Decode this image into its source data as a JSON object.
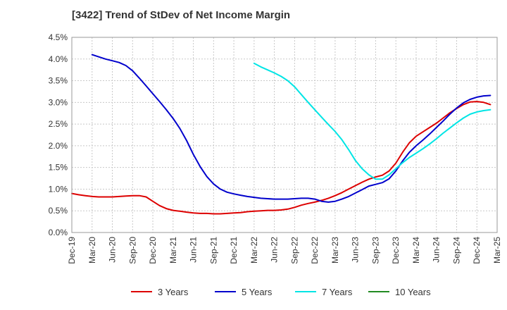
{
  "chart_data": {
    "type": "line",
    "title": "[3422]  Trend of StDev of Net Income Margin",
    "xlabel": "",
    "ylabel": "",
    "x_ticks": [
      "Dec-19",
      "Mar-20",
      "Jun-20",
      "Sep-20",
      "Dec-20",
      "Mar-21",
      "Jun-21",
      "Sep-21",
      "Dec-21",
      "Mar-22",
      "Jun-22",
      "Sep-22",
      "Dec-22",
      "Mar-23",
      "Jun-23",
      "Sep-23",
      "Dec-23",
      "Mar-24",
      "Jun-24",
      "Sep-24",
      "Dec-24",
      "Mar-25"
    ],
    "y_ticks": [
      "0.0%",
      "0.5%",
      "1.0%",
      "1.5%",
      "2.0%",
      "2.5%",
      "3.0%",
      "3.5%",
      "4.0%",
      "4.5%"
    ],
    "ylim": [
      0,
      4.5
    ],
    "y_unit": "%",
    "grid": true,
    "legend_position": "bottom",
    "series": [
      {
        "name": "3 Years",
        "color": "#dd0000",
        "points": [
          [
            "Dec-19",
            0.9
          ],
          [
            "Jan-20",
            0.87
          ],
          [
            "Feb-20",
            0.85
          ],
          [
            "Mar-20",
            0.83
          ],
          [
            "Apr-20",
            0.82
          ],
          [
            "May-20",
            0.82
          ],
          [
            "Jun-20",
            0.82
          ],
          [
            "Jul-20",
            0.83
          ],
          [
            "Aug-20",
            0.84
          ],
          [
            "Sep-20",
            0.85
          ],
          [
            "Oct-20",
            0.85
          ],
          [
            "Nov-20",
            0.82
          ],
          [
            "Dec-20",
            0.72
          ],
          [
            "Jan-21",
            0.62
          ],
          [
            "Feb-21",
            0.55
          ],
          [
            "Mar-21",
            0.51
          ],
          [
            "Apr-21",
            0.49
          ],
          [
            "May-21",
            0.47
          ],
          [
            "Jun-21",
            0.45
          ],
          [
            "Jul-21",
            0.44
          ],
          [
            "Aug-21",
            0.44
          ],
          [
            "Sep-21",
            0.43
          ],
          [
            "Oct-21",
            0.43
          ],
          [
            "Nov-21",
            0.44
          ],
          [
            "Dec-21",
            0.45
          ],
          [
            "Jan-22",
            0.46
          ],
          [
            "Feb-22",
            0.48
          ],
          [
            "Mar-22",
            0.49
          ],
          [
            "Apr-22",
            0.5
          ],
          [
            "May-22",
            0.51
          ],
          [
            "Jun-22",
            0.51
          ],
          [
            "Jul-22",
            0.52
          ],
          [
            "Aug-22",
            0.54
          ],
          [
            "Sep-22",
            0.58
          ],
          [
            "Oct-22",
            0.63
          ],
          [
            "Nov-22",
            0.67
          ],
          [
            "Dec-22",
            0.7
          ],
          [
            "Jan-23",
            0.74
          ],
          [
            "Feb-23",
            0.79
          ],
          [
            "Mar-23",
            0.85
          ],
          [
            "Apr-23",
            0.92
          ],
          [
            "May-23",
            1.0
          ],
          [
            "Jun-23",
            1.08
          ],
          [
            "Jul-23",
            1.16
          ],
          [
            "Aug-23",
            1.23
          ],
          [
            "Sep-23",
            1.28
          ],
          [
            "Oct-23",
            1.32
          ],
          [
            "Nov-23",
            1.42
          ],
          [
            "Dec-23",
            1.6
          ],
          [
            "Jan-24",
            1.85
          ],
          [
            "Feb-24",
            2.07
          ],
          [
            "Mar-24",
            2.22
          ],
          [
            "Apr-24",
            2.32
          ],
          [
            "May-24",
            2.42
          ],
          [
            "Jun-24",
            2.52
          ],
          [
            "Jul-24",
            2.64
          ],
          [
            "Aug-24",
            2.76
          ],
          [
            "Sep-24",
            2.86
          ],
          [
            "Oct-24",
            2.95
          ],
          [
            "Nov-24",
            3.01
          ],
          [
            "Dec-24",
            3.02
          ],
          [
            "Jan-25",
            3.0
          ],
          [
            "Feb-25",
            2.95
          ]
        ]
      },
      {
        "name": "5 Years",
        "color": "#0000cc",
        "points": [
          [
            "Mar-20",
            4.1
          ],
          [
            "Apr-20",
            4.05
          ],
          [
            "May-20",
            4.0
          ],
          [
            "Jun-20",
            3.96
          ],
          [
            "Jul-20",
            3.92
          ],
          [
            "Aug-20",
            3.85
          ],
          [
            "Sep-20",
            3.73
          ],
          [
            "Oct-20",
            3.56
          ],
          [
            "Nov-20",
            3.38
          ],
          [
            "Dec-20",
            3.2
          ],
          [
            "Jan-21",
            3.02
          ],
          [
            "Feb-21",
            2.83
          ],
          [
            "Mar-21",
            2.63
          ],
          [
            "Apr-21",
            2.4
          ],
          [
            "May-21",
            2.12
          ],
          [
            "Jun-21",
            1.8
          ],
          [
            "Jul-21",
            1.52
          ],
          [
            "Aug-21",
            1.29
          ],
          [
            "Sep-21",
            1.12
          ],
          [
            "Oct-21",
            1.0
          ],
          [
            "Nov-21",
            0.93
          ],
          [
            "Dec-21",
            0.89
          ],
          [
            "Jan-22",
            0.86
          ],
          [
            "Feb-22",
            0.83
          ],
          [
            "Mar-22",
            0.81
          ],
          [
            "Apr-22",
            0.79
          ],
          [
            "May-22",
            0.78
          ],
          [
            "Jun-22",
            0.77
          ],
          [
            "Jul-22",
            0.77
          ],
          [
            "Aug-22",
            0.77
          ],
          [
            "Sep-22",
            0.78
          ],
          [
            "Oct-22",
            0.79
          ],
          [
            "Nov-22",
            0.79
          ],
          [
            "Dec-22",
            0.77
          ],
          [
            "Jan-23",
            0.72
          ],
          [
            "Feb-23",
            0.7
          ],
          [
            "Mar-23",
            0.72
          ],
          [
            "Apr-23",
            0.77
          ],
          [
            "May-23",
            0.83
          ],
          [
            "Jun-23",
            0.91
          ],
          [
            "Jul-23",
            0.99
          ],
          [
            "Aug-23",
            1.07
          ],
          [
            "Sep-23",
            1.11
          ],
          [
            "Oct-23",
            1.15
          ],
          [
            "Nov-23",
            1.24
          ],
          [
            "Dec-23",
            1.42
          ],
          [
            "Jan-24",
            1.65
          ],
          [
            "Feb-24",
            1.85
          ],
          [
            "Mar-24",
            2.0
          ],
          [
            "Apr-24",
            2.13
          ],
          [
            "May-24",
            2.27
          ],
          [
            "Jun-24",
            2.42
          ],
          [
            "Jul-24",
            2.57
          ],
          [
            "Aug-24",
            2.73
          ],
          [
            "Sep-24",
            2.87
          ],
          [
            "Oct-24",
            2.99
          ],
          [
            "Nov-24",
            3.07
          ],
          [
            "Dec-24",
            3.12
          ],
          [
            "Jan-25",
            3.15
          ],
          [
            "Feb-25",
            3.16
          ]
        ]
      },
      {
        "name": "7 Years",
        "color": "#00e5e5",
        "points": [
          [
            "Mar-22",
            3.9
          ],
          [
            "Apr-22",
            3.82
          ],
          [
            "May-22",
            3.75
          ],
          [
            "Jun-22",
            3.68
          ],
          [
            "Jul-22",
            3.6
          ],
          [
            "Aug-22",
            3.5
          ],
          [
            "Sep-22",
            3.36
          ],
          [
            "Oct-22",
            3.18
          ],
          [
            "Nov-22",
            3.0
          ],
          [
            "Dec-22",
            2.83
          ],
          [
            "Jan-23",
            2.66
          ],
          [
            "Feb-23",
            2.49
          ],
          [
            "Mar-23",
            2.33
          ],
          [
            "Apr-23",
            2.14
          ],
          [
            "May-23",
            1.91
          ],
          [
            "Jun-23",
            1.66
          ],
          [
            "Jul-23",
            1.47
          ],
          [
            "Aug-23",
            1.33
          ],
          [
            "Sep-23",
            1.23
          ],
          [
            "Oct-23",
            1.23
          ],
          [
            "Nov-23",
            1.33
          ],
          [
            "Dec-23",
            1.47
          ],
          [
            "Jan-24",
            1.61
          ],
          [
            "Feb-24",
            1.73
          ],
          [
            "Mar-24",
            1.83
          ],
          [
            "Apr-24",
            1.93
          ],
          [
            "May-24",
            2.04
          ],
          [
            "Jun-24",
            2.16
          ],
          [
            "Jul-24",
            2.29
          ],
          [
            "Aug-24",
            2.41
          ],
          [
            "Sep-24",
            2.53
          ],
          [
            "Oct-24",
            2.64
          ],
          [
            "Nov-24",
            2.73
          ],
          [
            "Dec-24",
            2.78
          ],
          [
            "Jan-25",
            2.81
          ],
          [
            "Feb-25",
            2.83
          ]
        ]
      },
      {
        "name": "10 Years",
        "color": "#228b22",
        "points": []
      }
    ]
  }
}
